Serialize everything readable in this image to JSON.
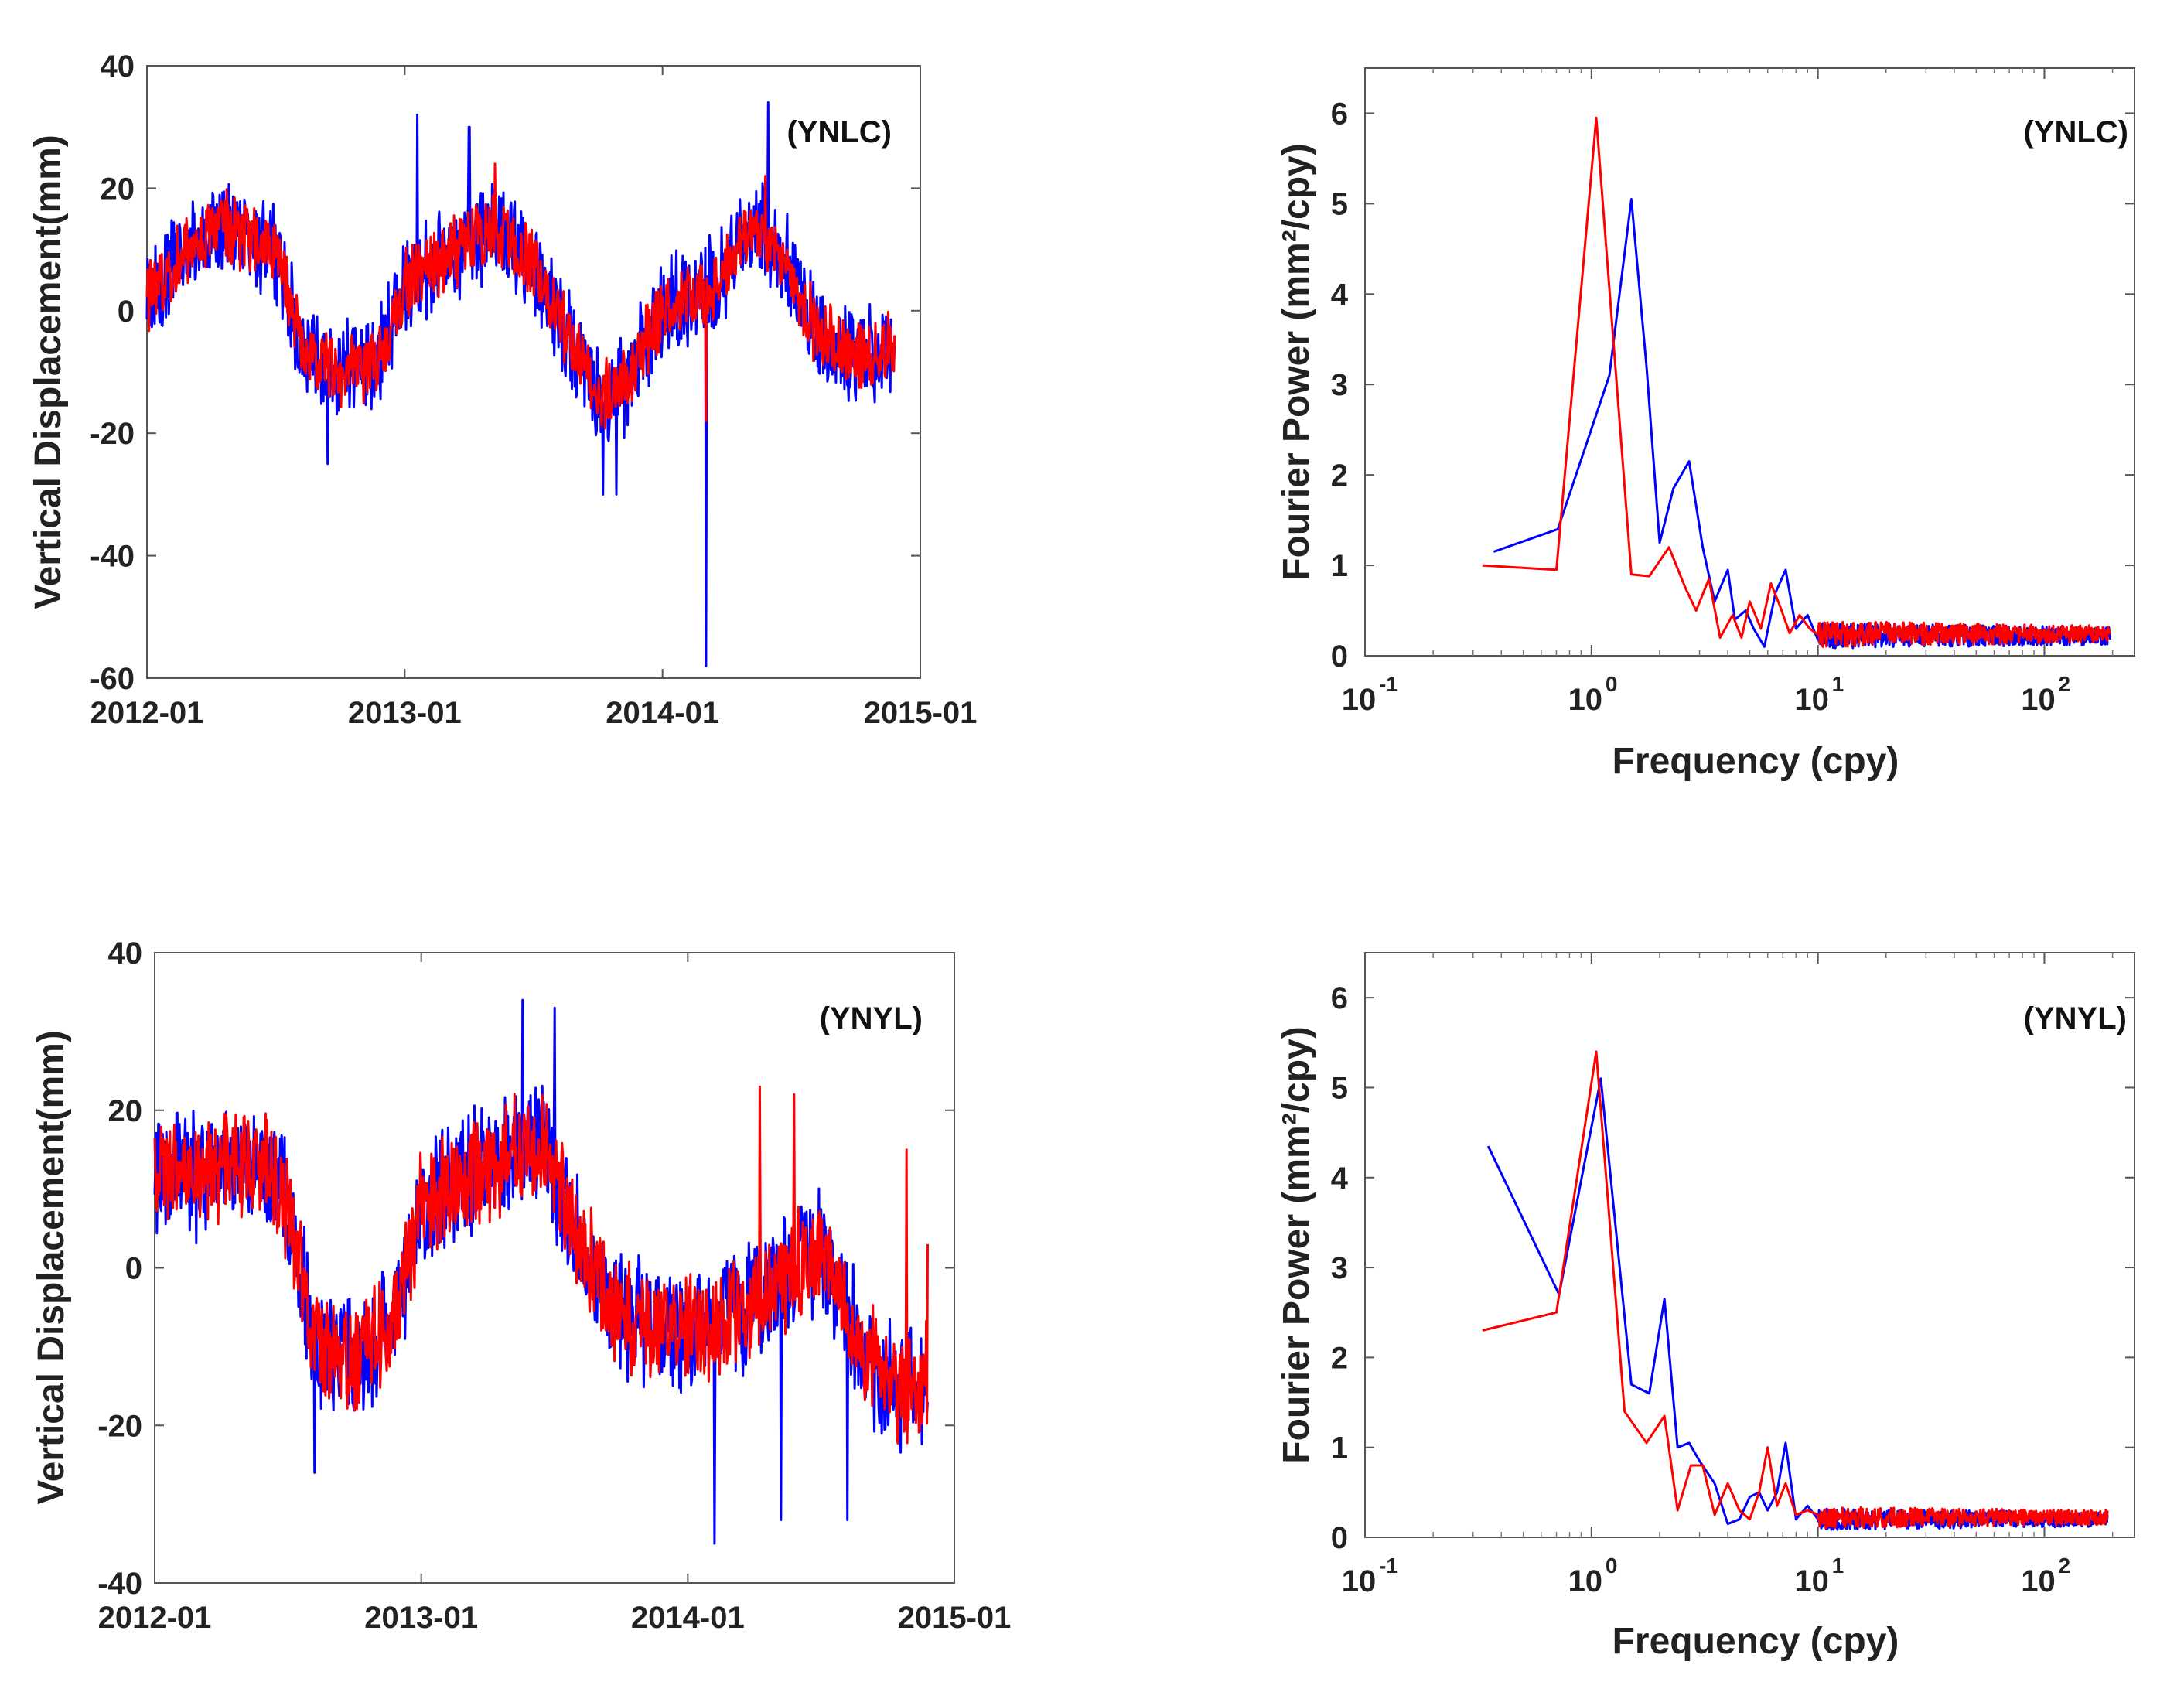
{
  "figure": {
    "colors": {
      "blue": "#0000FF",
      "red": "#FF0000",
      "axis": "#555555",
      "text": "#222222"
    }
  },
  "chart_data": [
    {
      "id": "ts_ynlc",
      "type": "line",
      "station": "(YNLC)",
      "title": "",
      "xlabel": "",
      "ylabel": "Vertical Displacement(mm)",
      "xlim": [
        2012.0,
        2015.0
      ],
      "ylim": [
        -60,
        40
      ],
      "xticks": [
        2012,
        2013,
        2014,
        2015
      ],
      "xtick_labels": [
        "2012-01",
        "2013-01",
        "2014-01",
        "2015-01"
      ],
      "yticks": [
        -60,
        -40,
        -20,
        0,
        20,
        40
      ],
      "ytick_labels": [
        "-60",
        "-40",
        "-20",
        "0",
        "20",
        "40"
      ],
      "x_extent": [
        2012.0,
        2014.9
      ],
      "seasonal": {
        "offset": 2,
        "amplitude": 13,
        "phase_peak": 2012.3,
        "trend_per_year": 0
      },
      "knots": [
        [
          2012.0,
          2
        ],
        [
          2012.15,
          10
        ],
        [
          2012.3,
          14
        ],
        [
          2012.5,
          10
        ],
        [
          2012.6,
          -6
        ],
        [
          2012.75,
          -10
        ],
        [
          2012.9,
          -8
        ],
        [
          2013.0,
          4
        ],
        [
          2013.2,
          10
        ],
        [
          2013.35,
          14
        ],
        [
          2013.5,
          8
        ],
        [
          2013.65,
          -6
        ],
        [
          2013.75,
          -14
        ],
        [
          2013.85,
          -12
        ],
        [
          2014.0,
          0
        ],
        [
          2014.2,
          4
        ],
        [
          2014.35,
          14
        ],
        [
          2014.45,
          10
        ],
        [
          2014.6,
          -4
        ],
        [
          2014.75,
          -8
        ],
        [
          2014.9,
          -6
        ]
      ],
      "series": [
        {
          "name": "blue series",
          "color": "#0000FF",
          "noise": 7,
          "spikes": [
            [
              2014.17,
              -58
            ],
            [
              2013.05,
              32
            ],
            [
              2013.25,
              30
            ],
            [
              2014.41,
              34
            ],
            [
              2013.77,
              -30
            ],
            [
              2013.82,
              -30
            ],
            [
              2012.7,
              -25
            ]
          ]
        },
        {
          "name": "red series",
          "color": "#FF0000",
          "noise": 5,
          "spikes": [
            [
              2013.35,
              24
            ],
            [
              2014.4,
              22
            ],
            [
              2014.17,
              -18
            ]
          ]
        }
      ]
    },
    {
      "id": "fp_ynlc",
      "type": "line",
      "station": "(YNLC)",
      "title": "",
      "xlabel": "Frequency (cpy)",
      "ylabel": "Fourier Power (mm²/cpy)",
      "xscale": "log",
      "xlim": [
        0.1,
        250
      ],
      "ylim": [
        0,
        6.5
      ],
      "xticks": [
        0.1,
        1,
        10,
        100
      ],
      "xtick_base": [
        "10",
        "10",
        "10",
        "10"
      ],
      "xtick_exp": [
        "-1",
        "0",
        "1",
        "2"
      ],
      "yticks": [
        0,
        1,
        2,
        3,
        4,
        5,
        6
      ],
      "ytick_labels": [
        "0",
        "1",
        "2",
        "3",
        "4",
        "5",
        "6"
      ],
      "series": [
        {
          "name": "blue series",
          "color": "#0000FF",
          "x": [
            0.37,
            0.71,
            1.2,
            1.5,
            1.75,
            2.0,
            2.3,
            2.7,
            3.1,
            3.5,
            4.0,
            4.3,
            4.8,
            5.2,
            5.8,
            6.5,
            7.2,
            8.0,
            9.0
          ],
          "y": [
            1.15,
            1.4,
            3.1,
            5.05,
            3.2,
            1.25,
            1.85,
            2.15,
            1.2,
            0.6,
            0.95,
            0.4,
            0.5,
            0.3,
            0.1,
            0.7,
            0.95,
            0.3,
            0.45
          ]
        },
        {
          "name": "red series",
          "color": "#FF0000",
          "x": [
            0.33,
            0.7,
            1.05,
            1.5,
            1.8,
            2.2,
            2.6,
            2.9,
            3.3,
            3.7,
            4.2,
            4.6,
            5.0,
            5.6,
            6.2,
            6.8,
            7.5,
            8.3,
            9.2
          ],
          "y": [
            1.0,
            0.95,
            5.95,
            0.9,
            0.88,
            1.2,
            0.75,
            0.5,
            0.85,
            0.2,
            0.45,
            0.2,
            0.6,
            0.3,
            0.8,
            0.55,
            0.25,
            0.45,
            0.3
          ]
        }
      ],
      "tail": {
        "from": 10,
        "to": 195,
        "blue_mean": 0.22,
        "red_mean": 0.24,
        "amp": 0.12
      }
    },
    {
      "id": "ts_ynyl",
      "type": "line",
      "station": "(YNYL)",
      "title": "",
      "xlabel": "",
      "ylabel": "Vertical Displacement(mm)",
      "xlim": [
        2012.0,
        2015.0
      ],
      "ylim": [
        -40,
        40
      ],
      "xticks": [
        2012,
        2013,
        2014,
        2015
      ],
      "xtick_labels": [
        "2012-01",
        "2013-01",
        "2014-01",
        "2015-01"
      ],
      "yticks": [
        -40,
        -20,
        0,
        20,
        40
      ],
      "ytick_labels": [
        "-40",
        "-20",
        "0",
        "20",
        "40"
      ],
      "x_extent": [
        2012.0,
        2014.9
      ],
      "knots": [
        [
          2012.0,
          12
        ],
        [
          2012.2,
          12
        ],
        [
          2012.4,
          14
        ],
        [
          2012.5,
          8
        ],
        [
          2012.6,
          -10
        ],
        [
          2012.75,
          -12
        ],
        [
          2012.9,
          -6
        ],
        [
          2013.0,
          8
        ],
        [
          2013.2,
          12
        ],
        [
          2013.45,
          16
        ],
        [
          2013.55,
          8
        ],
        [
          2013.7,
          -4
        ],
        [
          2013.85,
          -8
        ],
        [
          2014.0,
          -8
        ],
        [
          2014.2,
          -6
        ],
        [
          2014.4,
          0
        ],
        [
          2014.5,
          2
        ],
        [
          2014.65,
          -10
        ],
        [
          2014.8,
          -16
        ],
        [
          2014.9,
          -14
        ]
      ],
      "series": [
        {
          "name": "blue series",
          "color": "#0000FF",
          "noise": 7,
          "spikes": [
            [
              2014.1,
              -35
            ],
            [
              2013.38,
              34
            ],
            [
              2012.6,
              -26
            ],
            [
              2014.35,
              -32
            ],
            [
              2014.6,
              -32
            ],
            [
              2013.5,
              33
            ]
          ]
        },
        {
          "name": "red series",
          "color": "#FF0000",
          "noise": 6,
          "spikes": [
            [
              2014.27,
              23
            ],
            [
              2014.4,
              22
            ],
            [
              2014.82,
              15
            ],
            [
              2014.9,
              3
            ]
          ]
        }
      ]
    },
    {
      "id": "fp_ynyl",
      "type": "line",
      "station": "(YNYL)",
      "title": "",
      "xlabel": "Frequency (cpy)",
      "ylabel": "Fourier Power (mm²/cpy)",
      "xscale": "log",
      "xlim": [
        0.1,
        250
      ],
      "ylim": [
        0,
        6.5
      ],
      "xticks": [
        0.1,
        1,
        10,
        100
      ],
      "xtick_base": [
        "10",
        "10",
        "10",
        "10"
      ],
      "xtick_exp": [
        "-1",
        "0",
        "1",
        "2"
      ],
      "yticks": [
        0,
        1,
        2,
        3,
        4,
        5,
        6
      ],
      "ytick_labels": [
        "0",
        "1",
        "2",
        "3",
        "4",
        "5",
        "6"
      ],
      "series": [
        {
          "name": "blue series",
          "color": "#0000FF",
          "x": [
            0.35,
            0.72,
            1.1,
            1.5,
            1.8,
            2.1,
            2.4,
            2.7,
            3.0,
            3.5,
            4.0,
            4.5,
            5.0,
            5.5,
            6.0,
            6.6,
            7.2,
            8.0,
            9.0
          ],
          "y": [
            4.35,
            2.7,
            5.1,
            1.7,
            1.6,
            2.65,
            1.0,
            1.05,
            0.85,
            0.6,
            0.15,
            0.2,
            0.45,
            0.5,
            0.3,
            0.5,
            1.05,
            0.2,
            0.35
          ]
        },
        {
          "name": "red series",
          "color": "#FF0000",
          "x": [
            0.33,
            0.7,
            1.05,
            1.4,
            1.75,
            2.1,
            2.4,
            2.75,
            3.1,
            3.5,
            4.0,
            4.5,
            5.0,
            5.5,
            6.0,
            6.6,
            7.2,
            8.0,
            9.0
          ],
          "y": [
            2.3,
            2.5,
            5.4,
            1.4,
            1.05,
            1.35,
            0.3,
            0.8,
            0.8,
            0.25,
            0.6,
            0.3,
            0.2,
            0.5,
            1.0,
            0.35,
            0.6,
            0.25,
            0.3
          ]
        }
      ],
      "tail": {
        "from": 10,
        "to": 190,
        "blue_mean": 0.2,
        "red_mean": 0.22,
        "amp": 0.1
      }
    }
  ]
}
